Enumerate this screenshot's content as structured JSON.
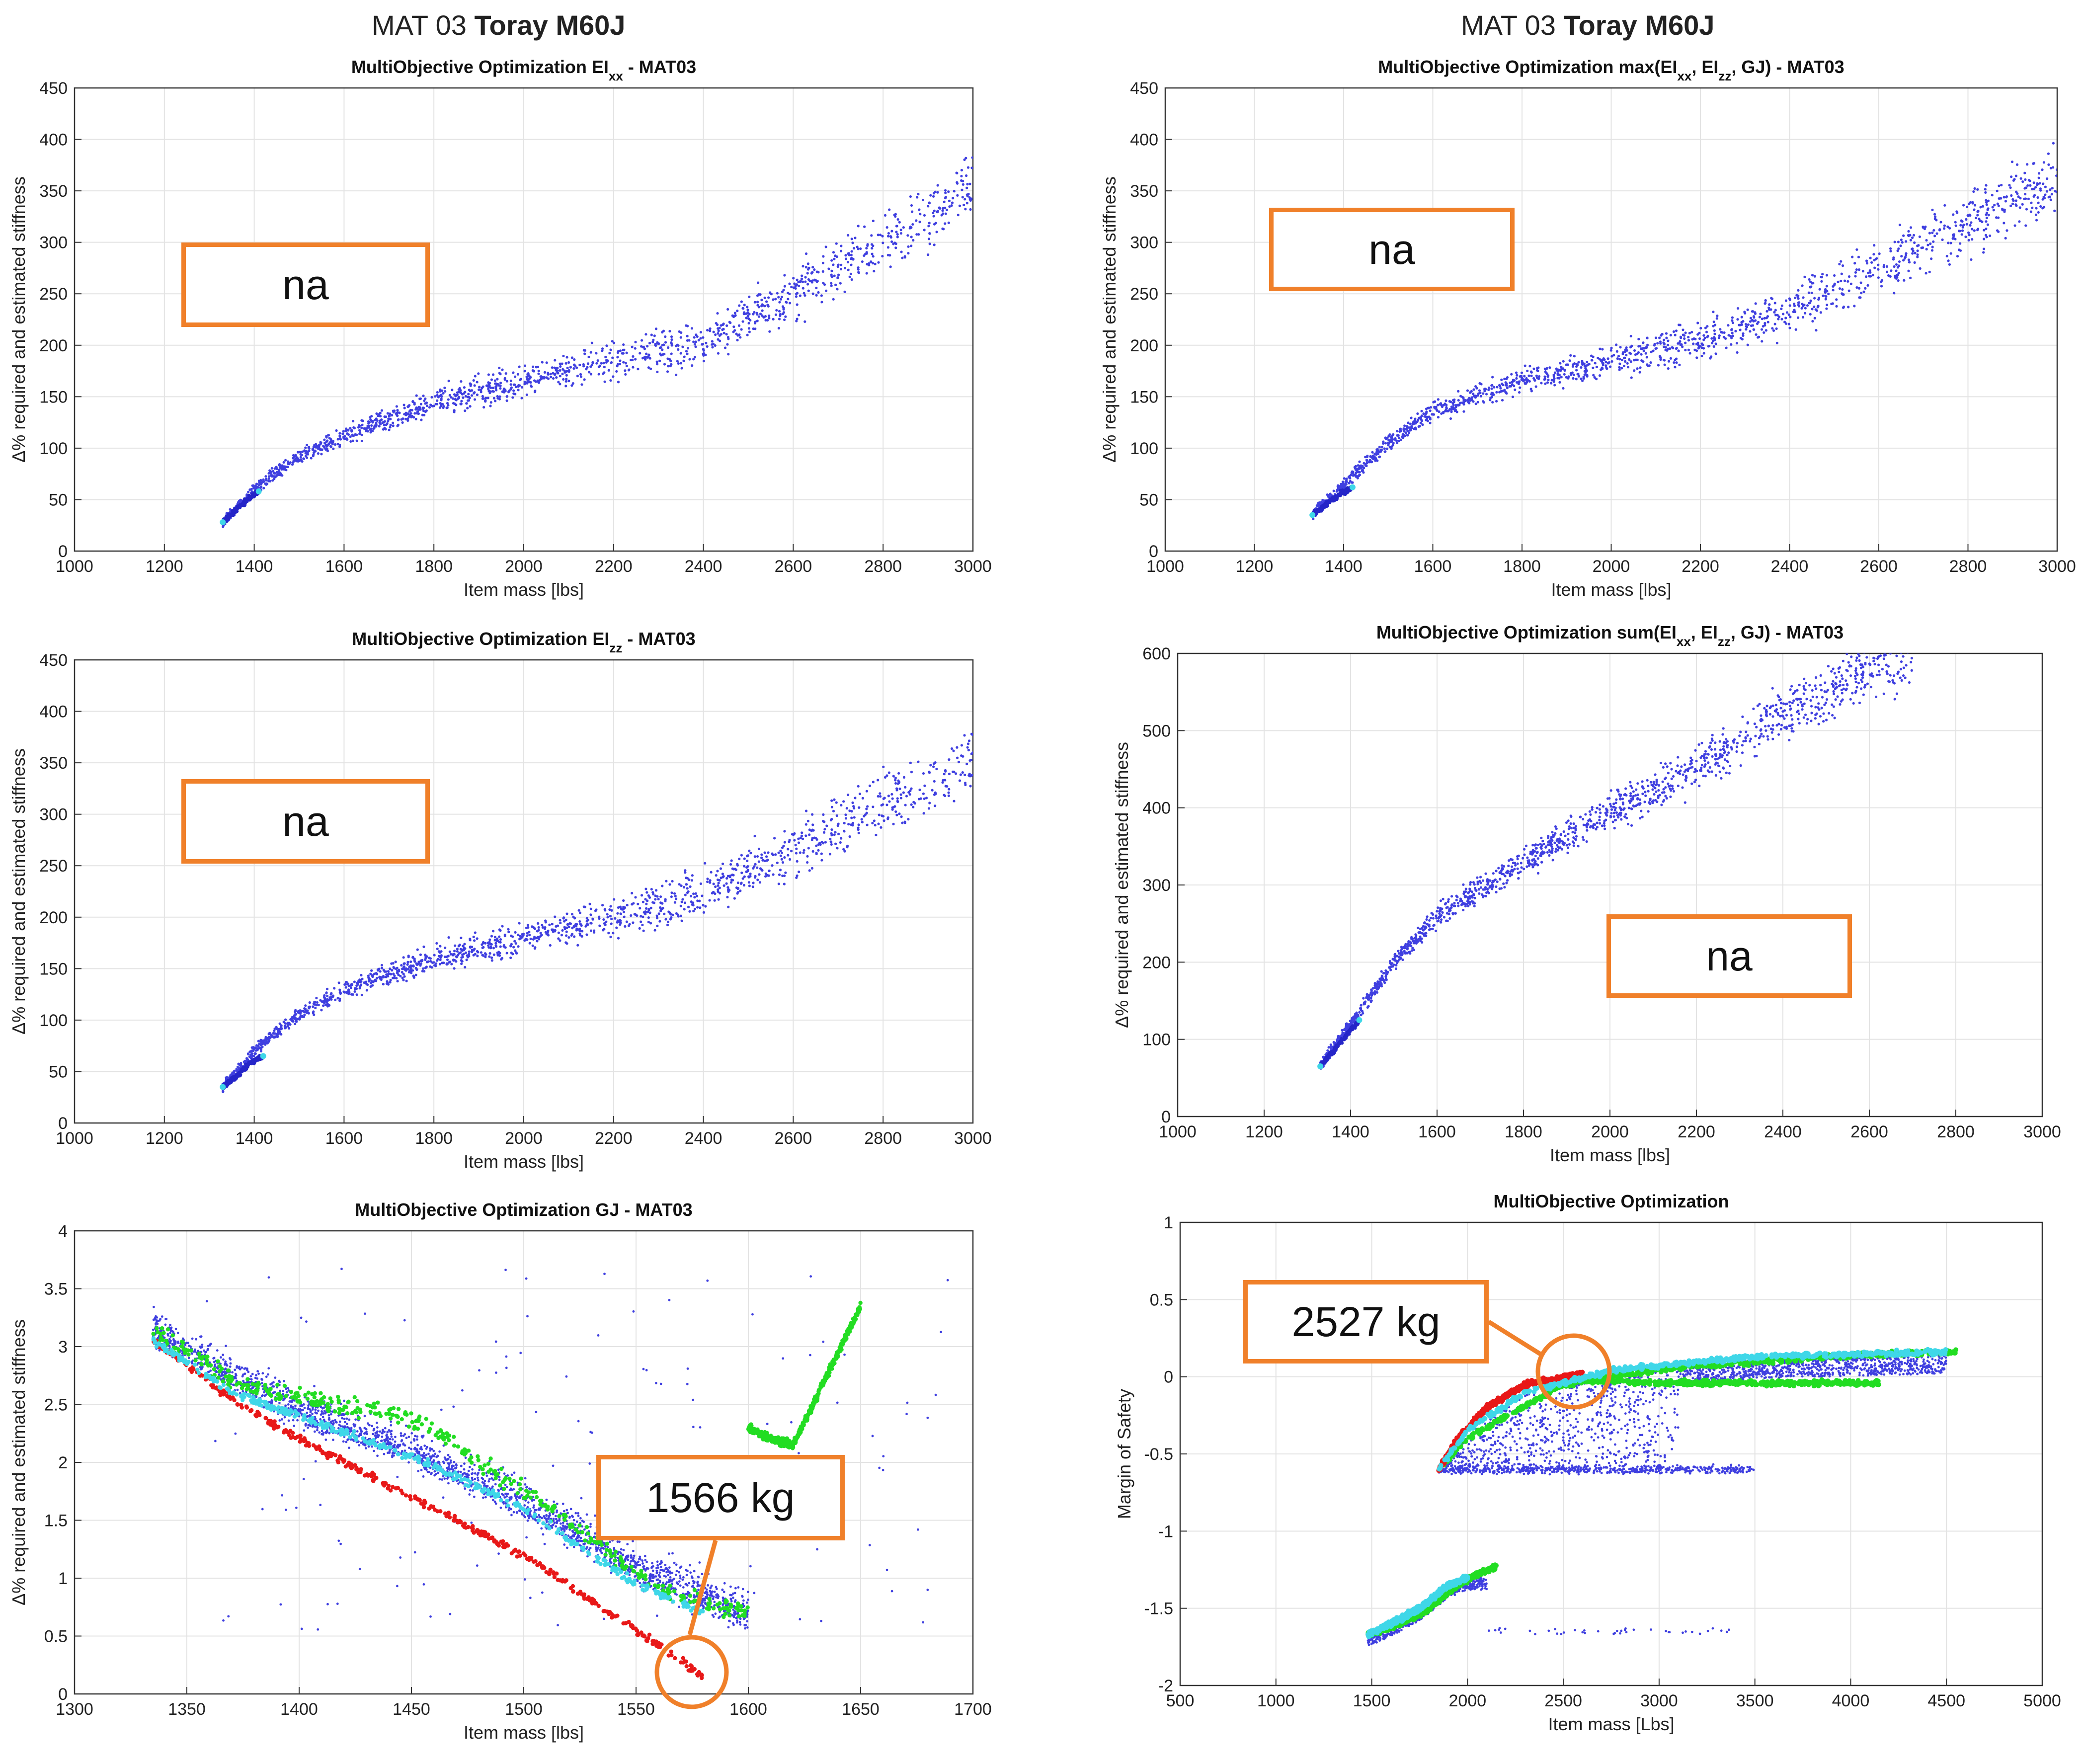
{
  "header_left": {
    "prefix": "MAT 03",
    "bold": "Toray M60J"
  },
  "header_right": {
    "prefix": "MAT 03",
    "bold": "Toray M60J"
  },
  "annotations": {
    "p1": "na",
    "p2": "na",
    "p3": "na",
    "p4": "na",
    "p5": "1566 kg",
    "p6": "2527 kg"
  },
  "colors": {
    "blue": "#3f3fe0",
    "cyan": "#3fd7e8",
    "green": "#22dd22",
    "red": "#e81818",
    "accent": "#f0802a",
    "grid": "#e3e3e3"
  },
  "chart_data": [
    {
      "type": "scatter",
      "title": "MultiObjective Optimization EI",
      "title_sub": "xx",
      "title_end": " - MAT03",
      "xlabel": "Item mass [lbs]",
      "ylabel": "Δ% required and estimated stiffness",
      "xlim": [
        1000,
        3000
      ],
      "ylim": [
        0,
        450
      ],
      "xticks": [
        1000,
        1200,
        1400,
        1600,
        1800,
        2000,
        2200,
        2400,
        2600,
        2800,
        3000
      ],
      "yticks": [
        0,
        50,
        100,
        150,
        200,
        250,
        300,
        350,
        400,
        450
      ],
      "trend": [
        [
          1330,
          28
        ],
        [
          1400,
          60
        ],
        [
          1500,
          92
        ],
        [
          1600,
          112
        ],
        [
          1800,
          145
        ],
        [
          2000,
          165
        ],
        [
          2200,
          185
        ],
        [
          2400,
          205
        ],
        [
          2600,
          250
        ],
        [
          2800,
          300
        ],
        [
          3000,
          355
        ]
      ],
      "front": [
        [
          1330,
          28
        ],
        [
          1360,
          40
        ],
        [
          1390,
          52
        ],
        [
          1410,
          58
        ]
      ]
    },
    {
      "type": "scatter",
      "title": "MultiObjective Optimization max(EI",
      "title_parts": [
        [
          "xx",
          ", EI"
        ],
        [
          "zz",
          ", GJ) - MAT03"
        ]
      ],
      "xlabel": "Item mass [lbs]",
      "ylabel": "Δ% required and estimated stiffness",
      "xlim": [
        1000,
        3000
      ],
      "ylim": [
        0,
        450
      ],
      "xticks": [
        1000,
        1200,
        1400,
        1600,
        1800,
        2000,
        2200,
        2400,
        2600,
        2800,
        3000
      ],
      "yticks": [
        0,
        50,
        100,
        150,
        200,
        250,
        300,
        350,
        400,
        450
      ],
      "trend": [
        [
          1330,
          35
        ],
        [
          1400,
          65
        ],
        [
          1500,
          105
        ],
        [
          1600,
          135
        ],
        [
          1800,
          165
        ],
        [
          2000,
          185
        ],
        [
          2200,
          205
        ],
        [
          2400,
          235
        ],
        [
          2600,
          275
        ],
        [
          2800,
          320
        ],
        [
          3000,
          360
        ]
      ],
      "front": [
        [
          1330,
          35
        ],
        [
          1360,
          45
        ],
        [
          1390,
          55
        ],
        [
          1420,
          62
        ]
      ]
    },
    {
      "type": "scatter",
      "title": "MultiObjective Optimization EI",
      "title_sub": "zz",
      "title_end": " - MAT03",
      "xlabel": "Item mass [lbs]",
      "ylabel": "Δ% required and estimated stiffness",
      "xlim": [
        1000,
        3000
      ],
      "ylim": [
        0,
        450
      ],
      "xticks": [
        1000,
        1200,
        1400,
        1600,
        1800,
        2000,
        2200,
        2400,
        2600,
        2800,
        3000
      ],
      "yticks": [
        0,
        50,
        100,
        150,
        200,
        250,
        300,
        350,
        400,
        450
      ],
      "trend": [
        [
          1330,
          35
        ],
        [
          1400,
          70
        ],
        [
          1500,
          105
        ],
        [
          1600,
          130
        ],
        [
          1800,
          160
        ],
        [
          2000,
          180
        ],
        [
          2200,
          200
        ],
        [
          2400,
          225
        ],
        [
          2600,
          265
        ],
        [
          2800,
          310
        ],
        [
          3000,
          350
        ]
      ],
      "front": [
        [
          1330,
          35
        ],
        [
          1360,
          45
        ],
        [
          1390,
          58
        ],
        [
          1420,
          65
        ]
      ]
    },
    {
      "type": "scatter",
      "title": "MultiObjective Optimization sum(EI",
      "title_parts": [
        [
          "xx",
          ", EI"
        ],
        [
          "zz",
          ", GJ) - MAT03"
        ]
      ],
      "xlabel": "Item mass [lbs]",
      "ylabel": "Δ% required and estimated stiffness",
      "xlim": [
        1000,
        3000
      ],
      "ylim": [
        0,
        600
      ],
      "xticks": [
        1000,
        1200,
        1400,
        1600,
        1800,
        2000,
        2200,
        2400,
        2600,
        2800,
        3000
      ],
      "yticks": [
        0,
        100,
        200,
        300,
        400,
        500,
        600
      ],
      "trend": [
        [
          1330,
          65
        ],
        [
          1400,
          120
        ],
        [
          1500,
          200
        ],
        [
          1600,
          260
        ],
        [
          1800,
          330
        ],
        [
          2000,
          395
        ],
        [
          2200,
          450
        ],
        [
          2400,
          520
        ],
        [
          2600,
          580
        ],
        [
          2700,
          600
        ]
      ],
      "front": [
        [
          1330,
          65
        ],
        [
          1360,
          85
        ],
        [
          1390,
          105
        ],
        [
          1420,
          125
        ]
      ]
    },
    {
      "type": "scatter",
      "title": "MultiObjective Optimization GJ - MAT03",
      "xlabel": "Item mass [lbs]",
      "ylabel": "Δ% required and estimated stiffness",
      "xlim": [
        1300,
        1700
      ],
      "ylim": [
        0,
        4
      ],
      "xticks": [
        1300,
        1350,
        1400,
        1450,
        1500,
        1550,
        1600,
        1650,
        1700
      ],
      "yticks": [
        0,
        0.5,
        1,
        1.5,
        2,
        2.5,
        3,
        3.5,
        4
      ],
      "series": [
        {
          "name": "blue",
          "points": [
            [
              1335,
              3.05
            ],
            [
              1400,
              2.35
            ],
            [
              1450,
              2.0
            ],
            [
              1500,
              1.55
            ],
            [
              1550,
              1.0
            ],
            [
              1600,
              0.6
            ]
          ]
        },
        {
          "name": "red",
          "points": [
            [
              1335,
              3.05
            ],
            [
              1370,
              2.55
            ],
            [
              1400,
              2.2
            ],
            [
              1450,
              1.7
            ],
            [
              1500,
              1.2
            ],
            [
              1550,
              0.55
            ],
            [
              1580,
              0.15
            ]
          ]
        },
        {
          "name": "cyan",
          "points": [
            [
              1335,
              3.05
            ],
            [
              1370,
              2.6
            ],
            [
              1400,
              2.4
            ],
            [
              1450,
              2.05
            ],
            [
              1500,
              1.6
            ],
            [
              1550,
              0.95
            ],
            [
              1580,
              0.7
            ]
          ]
        },
        {
          "name": "green",
          "points": [
            [
              1335,
              3.15
            ],
            [
              1370,
              2.7
            ],
            [
              1400,
              2.55
            ],
            [
              1450,
              2.4
            ],
            [
              1480,
              2.0
            ],
            [
              1520,
              1.5
            ],
            [
              1560,
              0.9
            ],
            [
              1600,
              0.7
            ]
          ]
        },
        {
          "name": "green_tail",
          "points": [
            [
              1600,
              2.3
            ],
            [
              1610,
              2.2
            ],
            [
              1620,
              2.15
            ],
            [
              1650,
              3.35
            ]
          ]
        }
      ]
    },
    {
      "type": "scatter",
      "title": "MultiObjective Optimization",
      "xlabel": "Item mass [Lbs]",
      "ylabel": "Margin of Safety",
      "xlim": [
        500,
        5000
      ],
      "ylim": [
        -2,
        1
      ],
      "xticks": [
        500,
        1000,
        1500,
        2000,
        2500,
        3000,
        3500,
        4000,
        4500,
        5000
      ],
      "yticks": [
        -2,
        -1.5,
        -1,
        -0.5,
        0,
        0.5,
        1
      ],
      "series": [
        {
          "name": "cyan",
          "points": [
            [
              1850,
              -0.6
            ],
            [
              2000,
              -0.35
            ],
            [
              2300,
              -0.1
            ],
            [
              2800,
              0.05
            ],
            [
              3500,
              0.13
            ],
            [
              4500,
              0.16
            ]
          ]
        },
        {
          "name": "green",
          "points": [
            [
              1850,
              -0.6
            ],
            [
              2000,
              -0.4
            ],
            [
              2500,
              -0.05
            ],
            [
              3000,
              0.05
            ],
            [
              4000,
              0.14
            ],
            [
              4550,
              0.16
            ]
          ]
        },
        {
          "name": "green_lower",
          "points": [
            [
              2500,
              -0.02
            ],
            [
              3000,
              -0.04
            ],
            [
              3500,
              -0.04
            ],
            [
              4150,
              -0.04
            ]
          ]
        },
        {
          "name": "red",
          "points": [
            [
              1850,
              -0.6
            ],
            [
              1950,
              -0.4
            ],
            [
              2100,
              -0.2
            ],
            [
              2300,
              -0.05
            ],
            [
              2600,
              0.02
            ]
          ]
        },
        {
          "name": "lower_cyan",
          "points": [
            [
              1480,
              -1.67
            ],
            [
              1600,
              -1.6
            ],
            [
              1750,
              -1.5
            ],
            [
              1900,
              -1.35
            ],
            [
              2000,
              -1.3
            ]
          ]
        },
        {
          "name": "lower_green",
          "points": [
            [
              1480,
              -1.67
            ],
            [
              1650,
              -1.6
            ],
            [
              1800,
              -1.5
            ],
            [
              1950,
              -1.35
            ],
            [
              2050,
              -1.28
            ],
            [
              2150,
              -1.23
            ]
          ]
        }
      ]
    }
  ]
}
